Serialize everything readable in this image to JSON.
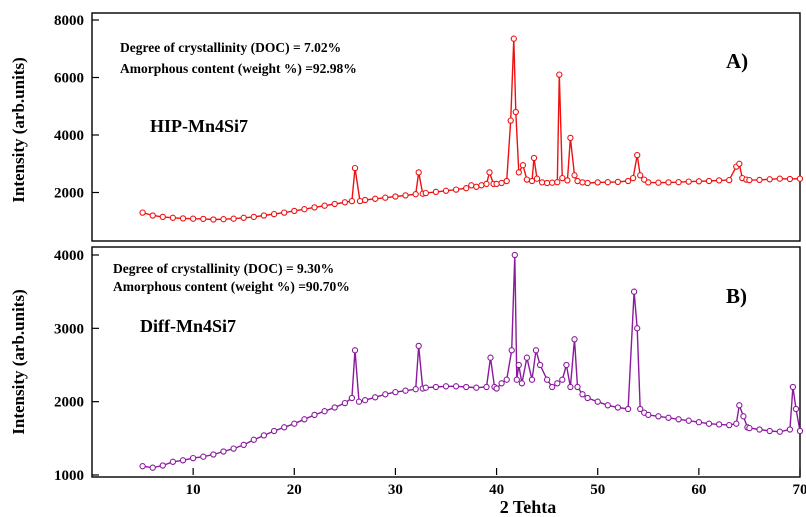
{
  "chart_data": [
    {
      "type": "line",
      "panel_label": "A)",
      "sample_label": "HIP-Mn4Si7",
      "annotations": [
        "Degree of crystallinity (DOC) = 7.02%",
        "Amorphous content (weight %) =92.98%"
      ],
      "ylabel": "Intensity (arb.units)",
      "xlabel": "",
      "xlim": [
        0,
        70
      ],
      "ylim": [
        0,
        8000
      ],
      "yticks": [
        "2000",
        "4000",
        "6000",
        "8000"
      ],
      "xticks": [],
      "color": "#ee1111",
      "series": [
        {
          "x": [
            5,
            6,
            7,
            8,
            9,
            10,
            11,
            12,
            13,
            14,
            15,
            16,
            17,
            18,
            19,
            20,
            21,
            22,
            23,
            24,
            25,
            25.7,
            26,
            26.5,
            27,
            28,
            29,
            30,
            31,
            32,
            32.3,
            32.7,
            33,
            34,
            35,
            36,
            37,
            37.5,
            38,
            38.5,
            39,
            39.3,
            39.7,
            40,
            40.5,
            41,
            41.4,
            41.7,
            41.9,
            42.2,
            42.6,
            43,
            43.5,
            43.7,
            44,
            44.5,
            45,
            45.5,
            46,
            46.2,
            46.5,
            47,
            47.3,
            47.7,
            48,
            48.5,
            49,
            50,
            51,
            52,
            53,
            53.5,
            53.9,
            54.2,
            54.6,
            55,
            56,
            57,
            58,
            59,
            60,
            61,
            62,
            63,
            63.7,
            64,
            64.3,
            64.7,
            65,
            66,
            67,
            68,
            69,
            70
          ],
          "y": [
            1300,
            1200,
            1150,
            1120,
            1100,
            1090,
            1080,
            1060,
            1070,
            1090,
            1120,
            1150,
            1200,
            1250,
            1300,
            1360,
            1420,
            1480,
            1540,
            1600,
            1660,
            1700,
            2850,
            1700,
            1740,
            1780,
            1820,
            1860,
            1900,
            1940,
            2700,
            1960,
            1980,
            2020,
            2060,
            2100,
            2150,
            2250,
            2200,
            2250,
            2300,
            2700,
            2300,
            2300,
            2330,
            2400,
            4500,
            7350,
            4800,
            2700,
            2950,
            2450,
            2400,
            3200,
            2480,
            2350,
            2330,
            2340,
            2360,
            6100,
            2500,
            2420,
            3900,
            2600,
            2400,
            2350,
            2330,
            2350,
            2360,
            2370,
            2400,
            2500,
            3300,
            2600,
            2450,
            2350,
            2340,
            2350,
            2360,
            2380,
            2390,
            2400,
            2420,
            2430,
            2900,
            3000,
            2500,
            2450,
            2430,
            2440,
            2460,
            2480,
            2470,
            2480
          ]
        }
      ]
    },
    {
      "type": "line",
      "panel_label": "B)",
      "sample_label": "Diff-Mn4Si7",
      "annotations": [
        "Degree of crystallinity (DOC) = 9.30%",
        "Amorphous content (weight %) =90.70%"
      ],
      "ylabel": "Intensity (arb.units)",
      "xlabel": "2 Tehta",
      "xlim": [
        0,
        70
      ],
      "ylim": [
        1000,
        4000
      ],
      "yticks": [
        "1000",
        "2000",
        "3000",
        "4000"
      ],
      "xticks": [
        "10",
        "20",
        "30",
        "40",
        "50",
        "60",
        "70"
      ],
      "color": "#8b1a9e",
      "series": [
        {
          "x": [
            5,
            6,
            7,
            8,
            9,
            10,
            11,
            12,
            13,
            14,
            15,
            16,
            17,
            18,
            19,
            20,
            21,
            22,
            23,
            24,
            25,
            25.7,
            26,
            26.4,
            27,
            28,
            29,
            30,
            31,
            32,
            32.3,
            32.7,
            33,
            34,
            35,
            36,
            37,
            38,
            39,
            39.4,
            39.8,
            40,
            40.5,
            41,
            41.5,
            41.8,
            42,
            42.2,
            42.5,
            43,
            43.5,
            43.9,
            44.3,
            45,
            45.5,
            46,
            46.5,
            46.9,
            47.3,
            47.7,
            48,
            48.5,
            49,
            50,
            51,
            52,
            53,
            53.6,
            53.9,
            54.2,
            54.6,
            55,
            56,
            57,
            58,
            59,
            60,
            61,
            62,
            63,
            63.7,
            64,
            64.4,
            64.8,
            65,
            66,
            67,
            68,
            69,
            69.3,
            69.6,
            70
          ],
          "y": [
            1120,
            1100,
            1130,
            1180,
            1200,
            1230,
            1250,
            1280,
            1320,
            1360,
            1410,
            1480,
            1540,
            1600,
            1650,
            1700,
            1760,
            1820,
            1870,
            1920,
            1980,
            2050,
            2700,
            2000,
            2020,
            2060,
            2100,
            2130,
            2150,
            2170,
            2760,
            2180,
            2190,
            2200,
            2210,
            2210,
            2200,
            2190,
            2200,
            2600,
            2200,
            2180,
            2250,
            2300,
            2700,
            4000,
            2300,
            2500,
            2250,
            2600,
            2300,
            2700,
            2500,
            2300,
            2200,
            2250,
            2300,
            2500,
            2200,
            2850,
            2200,
            2100,
            2050,
            2000,
            1950,
            1920,
            1900,
            3500,
            3000,
            1900,
            1850,
            1820,
            1800,
            1780,
            1760,
            1740,
            1720,
            1700,
            1690,
            1680,
            1700,
            1950,
            1800,
            1650,
            1640,
            1620,
            1600,
            1590,
            1620,
            2200,
            1900,
            1600
          ]
        }
      ]
    }
  ]
}
